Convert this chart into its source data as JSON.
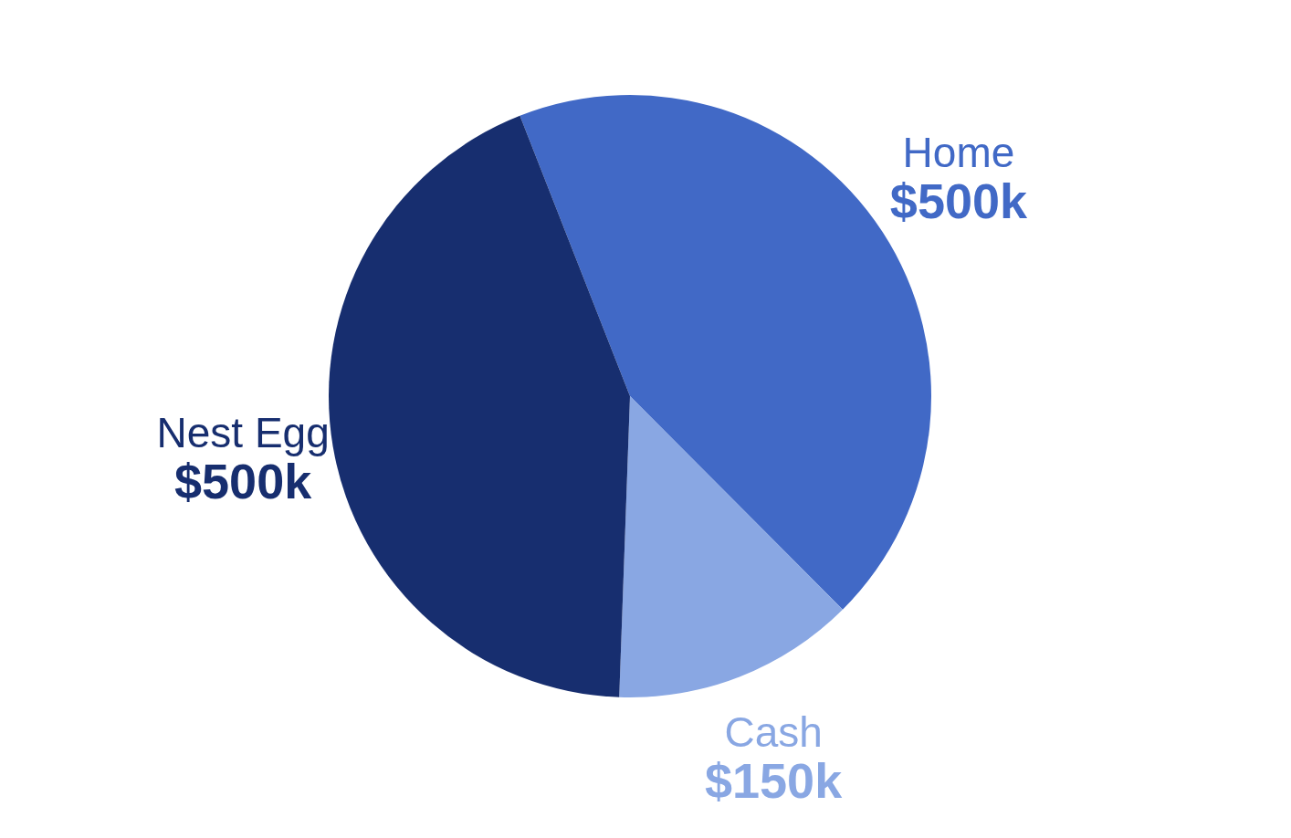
{
  "chart_data": {
    "type": "pie",
    "categories": [
      "Home",
      "Cash",
      "Nest Egg"
    ],
    "values": [
      500,
      150,
      500
    ],
    "value_labels": [
      "$500k",
      "$150k",
      "$500k"
    ],
    "colors": [
      "#4169c6",
      "#89a7e3",
      "#172e6f"
    ],
    "legend": false
  }
}
